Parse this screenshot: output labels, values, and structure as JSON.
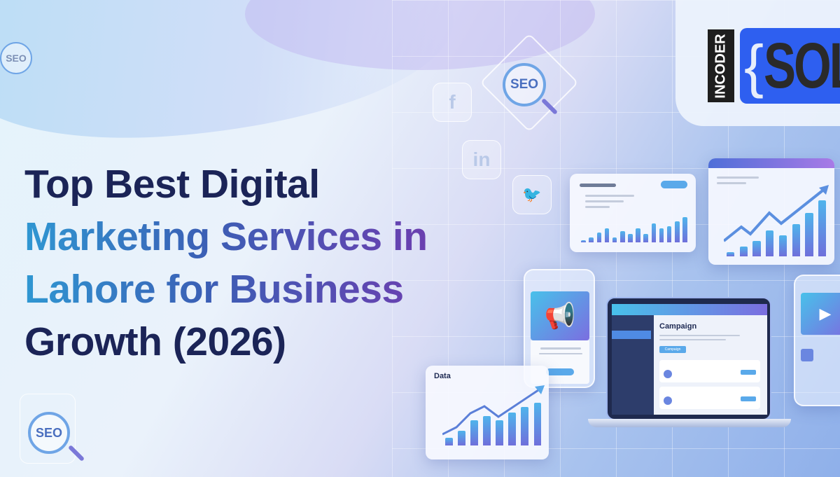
{
  "title": {
    "line1": "Top Best Digital",
    "line2": "Marketing Services in",
    "line3": "Lahore for Business",
    "line4": "Growth (2026)"
  },
  "logo": {
    "vertical": "INCODER",
    "brace": "{",
    "word": "SOL",
    "colors": {
      "box": "#2e5ff0",
      "text": "#2a2a2a"
    }
  },
  "badges": {
    "seo_top_left": "SEO",
    "seo_center": "SEO",
    "seo_bottom": "SEO"
  },
  "social_icons": [
    "facebook-icon",
    "linkedin-icon",
    "twitter-icon"
  ],
  "social_glyphs": {
    "facebook": "f",
    "linkedin": "in",
    "twitter": "🐦"
  },
  "data_card": {
    "title": "Data"
  },
  "laptop": {
    "heading": "Campaign",
    "button": "Campaign"
  },
  "decor_charts": {
    "data_card_bars": [
      15,
      28,
      48,
      55,
      47,
      62,
      73,
      80
    ],
    "sales_card_bars": [
      8,
      20,
      38,
      55,
      20,
      45,
      32,
      56,
      34,
      76,
      56,
      65,
      83,
      100
    ],
    "growth_card_bars": [
      8,
      18,
      28,
      46,
      38,
      58,
      78,
      100
    ]
  },
  "colors": {
    "title_dark": "#1b2457",
    "title_gradient_start": "#2f97d2",
    "title_gradient_end": "#6b3fb0",
    "bar_top": "#4fb4ec",
    "bar_bottom": "#6f6fdb"
  }
}
